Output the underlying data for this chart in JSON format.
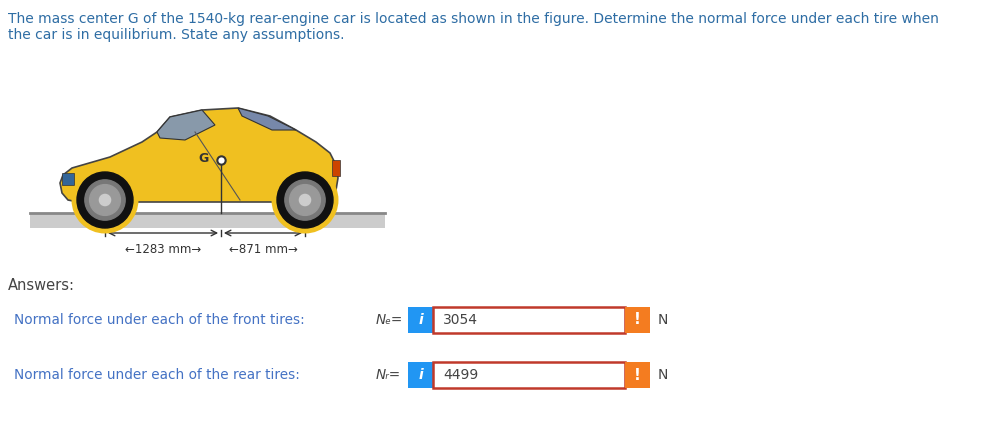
{
  "title_line1": "The mass center G of the 1540-kg rear-engine car is located as shown in the figure. Determine the normal force under each tire when",
  "title_line2": "the car is in equilibrium. State äny assumptions.",
  "title_color": "#2e6da4",
  "answers_label": "Answers:",
  "answers_color": "#444444",
  "row1_label": "Normal force under each of the front tires:",
  "row1_var": "Nₑ=",
  "row1_value": "3054",
  "row2_label": "Normal force under each of the rear tires:",
  "row2_var": "Nᵣ=",
  "row2_value": "4499",
  "unit": "N",
  "label_color": "#4472c4",
  "text_color": "#444444",
  "blue_color": "#2196f3",
  "orange_color": "#f47c20",
  "box_border_color": "#c0392b",
  "input_bg": "#ffffff",
  "dim_text": "←1283 mm→",
  "dim_text2": "←871 mm→",
  "car_yellow": "#f0c020",
  "car_dark": "#222222",
  "background_color": "#ffffff",
  "figwidth": 10.03,
  "figheight": 4.37,
  "dpi": 100
}
